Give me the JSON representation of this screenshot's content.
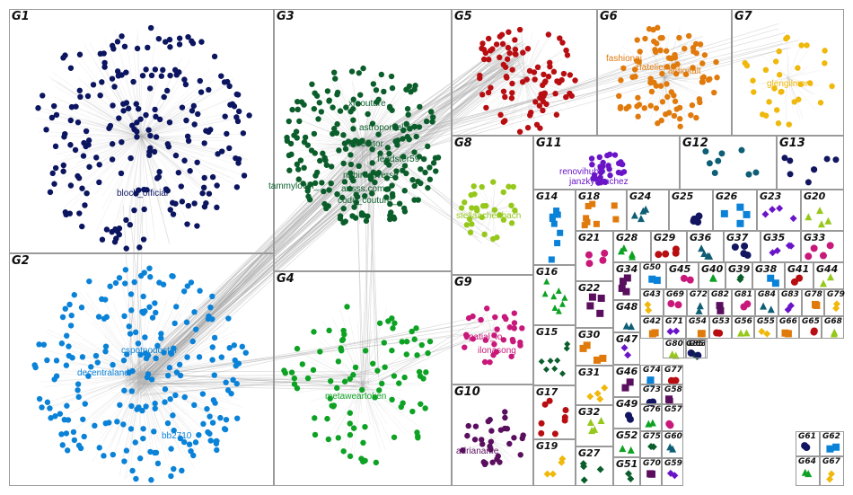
{
  "groups": [
    {
      "id": "G1",
      "color": "#0b1560"
    },
    {
      "id": "G2",
      "color": "#0a82d8"
    },
    {
      "id": "G3",
      "color": "#0b5e2b"
    },
    {
      "id": "G4",
      "color": "#0ea224"
    },
    {
      "id": "G5",
      "color": "#b80e12"
    },
    {
      "id": "G6",
      "color": "#e07a0c"
    },
    {
      "id": "G7",
      "color": "#f0b80a"
    },
    {
      "id": "G8",
      "color": "#96c81c"
    },
    {
      "id": "G9",
      "color": "#c8187a"
    },
    {
      "id": "G10",
      "color": "#5a0e5e"
    },
    {
      "id": "G11",
      "color": "#6a14c8"
    },
    {
      "id": "G12",
      "color": "#0e5e76"
    },
    {
      "id": "G13",
      "color": "#121560"
    },
    {
      "id": "G14",
      "color": "#0a82d8"
    },
    {
      "id": "G15",
      "color": "#0b5e2b"
    },
    {
      "id": "G16",
      "color": "#0ea224"
    },
    {
      "id": "G17",
      "color": "#b80e12"
    },
    {
      "id": "G18",
      "color": "#e07a0c"
    },
    {
      "id": "G19",
      "color": "#f0b80a"
    },
    {
      "id": "G20",
      "color": "#96c81c"
    },
    {
      "id": "G21",
      "color": "#c8187a"
    },
    {
      "id": "G22",
      "color": "#5a0e5e"
    },
    {
      "id": "G23",
      "color": "#6a14c8"
    },
    {
      "id": "G24",
      "color": "#0e5e76"
    },
    {
      "id": "G25",
      "color": "#121560"
    },
    {
      "id": "G26",
      "color": "#0a82d8"
    },
    {
      "id": "G27",
      "color": "#0b5e2b"
    },
    {
      "id": "G28",
      "color": "#0ea224"
    },
    {
      "id": "G29",
      "color": "#b80e12"
    },
    {
      "id": "G30",
      "color": "#e07a0c"
    },
    {
      "id": "G31",
      "color": "#f0b80a"
    },
    {
      "id": "G32",
      "color": "#96c81c"
    },
    {
      "id": "G33",
      "color": "#c8187a"
    },
    {
      "id": "G34",
      "color": "#5a0e5e"
    },
    {
      "id": "G35",
      "color": "#6a14c8"
    },
    {
      "id": "G36",
      "color": "#0e5e76"
    },
    {
      "id": "G37",
      "color": "#121560"
    },
    {
      "id": "G38",
      "color": "#0a82d8"
    },
    {
      "id": "G39",
      "color": "#0b5e2b"
    },
    {
      "id": "G40",
      "color": "#0ea224"
    },
    {
      "id": "G41",
      "color": "#b80e12"
    },
    {
      "id": "G42",
      "color": "#e07a0c"
    },
    {
      "id": "G43",
      "color": "#f0b80a"
    },
    {
      "id": "G44",
      "color": "#96c81c"
    },
    {
      "id": "G45",
      "color": "#c8187a"
    },
    {
      "id": "G46",
      "color": "#5a0e5e"
    },
    {
      "id": "G47",
      "color": "#6a14c8"
    },
    {
      "id": "G48",
      "color": "#0e5e76"
    },
    {
      "id": "G49",
      "color": "#121560"
    },
    {
      "id": "G50",
      "color": "#0a82d8"
    },
    {
      "id": "G51",
      "color": "#0b5e2b"
    },
    {
      "id": "G52",
      "color": "#0ea224"
    },
    {
      "id": "G53",
      "color": "#b80e12"
    },
    {
      "id": "G54",
      "color": "#e07a0c"
    },
    {
      "id": "G55",
      "color": "#f0b80a"
    },
    {
      "id": "G56",
      "color": "#96c81c"
    },
    {
      "id": "G57",
      "color": "#c8187a"
    },
    {
      "id": "G58",
      "color": "#5a0e5e"
    },
    {
      "id": "G59",
      "color": "#6a14c8"
    },
    {
      "id": "G60",
      "color": "#0e5e76"
    },
    {
      "id": "G61",
      "color": "#121560"
    },
    {
      "id": "G62",
      "color": "#0a82d8"
    },
    {
      "id": "G63",
      "color": "#0b5e2b"
    },
    {
      "id": "G64",
      "color": "#0ea224"
    },
    {
      "id": "G65",
      "color": "#b80e12"
    },
    {
      "id": "G66",
      "color": "#e07a0c"
    },
    {
      "id": "G67",
      "color": "#f0b80a"
    },
    {
      "id": "G68",
      "color": "#96c81c"
    },
    {
      "id": "G69",
      "color": "#c8187a"
    },
    {
      "id": "G70",
      "color": "#5a0e5e"
    },
    {
      "id": "G71",
      "color": "#6a14c8"
    },
    {
      "id": "G72",
      "color": "#0e5e76"
    },
    {
      "id": "G73",
      "color": "#121560"
    },
    {
      "id": "G74",
      "color": "#0a82d8"
    },
    {
      "id": "G75",
      "color": "#0b5e2b"
    },
    {
      "id": "G76",
      "color": "#0ea224"
    },
    {
      "id": "G77",
      "color": "#b80e12"
    },
    {
      "id": "G78",
      "color": "#e07a0c"
    },
    {
      "id": "G79",
      "color": "#f0b80a"
    },
    {
      "id": "G80",
      "color": "#96c81c"
    },
    {
      "id": "G81",
      "color": "#c8187a"
    },
    {
      "id": "G82",
      "color": "#5a0e5e"
    },
    {
      "id": "G83",
      "color": "#6a14c8"
    },
    {
      "id": "G84",
      "color": "#0e5e76"
    },
    {
      "id": "G85",
      "color": "#121560"
    }
  ],
  "node_labels": [
    {
      "group": "G1",
      "text": "block_official"
    },
    {
      "group": "G2",
      "text": "cspotnodoctor"
    },
    {
      "group": "G2",
      "text": "decentraland"
    },
    {
      "group": "G2",
      "text": "bb2710"
    },
    {
      "group": "G3",
      "text": "xrcouture"
    },
    {
      "group": "G3",
      "text": "astroporcelain"
    },
    {
      "group": "G3",
      "text": "faireditor"
    },
    {
      "group": "G3",
      "text": "feedster59"
    },
    {
      "group": "G3",
      "text": "nbbirdsiiverse"
    },
    {
      "group": "G3",
      "text": "tammylovin_"
    },
    {
      "group": "G3",
      "text": "artsss.com"
    },
    {
      "group": "G3",
      "text": "code_couture_"
    },
    {
      "group": "G4",
      "text": "metaweartoken"
    },
    {
      "group": "G6",
      "text": "fashionai"
    },
    {
      "group": "G6",
      "text": "zfatelier"
    },
    {
      "group": "G6",
      "text": "aidigitalt"
    },
    {
      "group": "G7",
      "text": "glengilmore"
    },
    {
      "group": "G8",
      "text": "stellaachenbach"
    },
    {
      "group": "G9",
      "text": "spatial_io"
    },
    {
      "group": "G9",
      "text": "ilonasong"
    },
    {
      "group": "G10",
      "text": "adriananfe"
    },
    {
      "group": "G11",
      "text": "renovihub"
    },
    {
      "group": "G11",
      "text": "janzkysanchez"
    }
  ]
}
